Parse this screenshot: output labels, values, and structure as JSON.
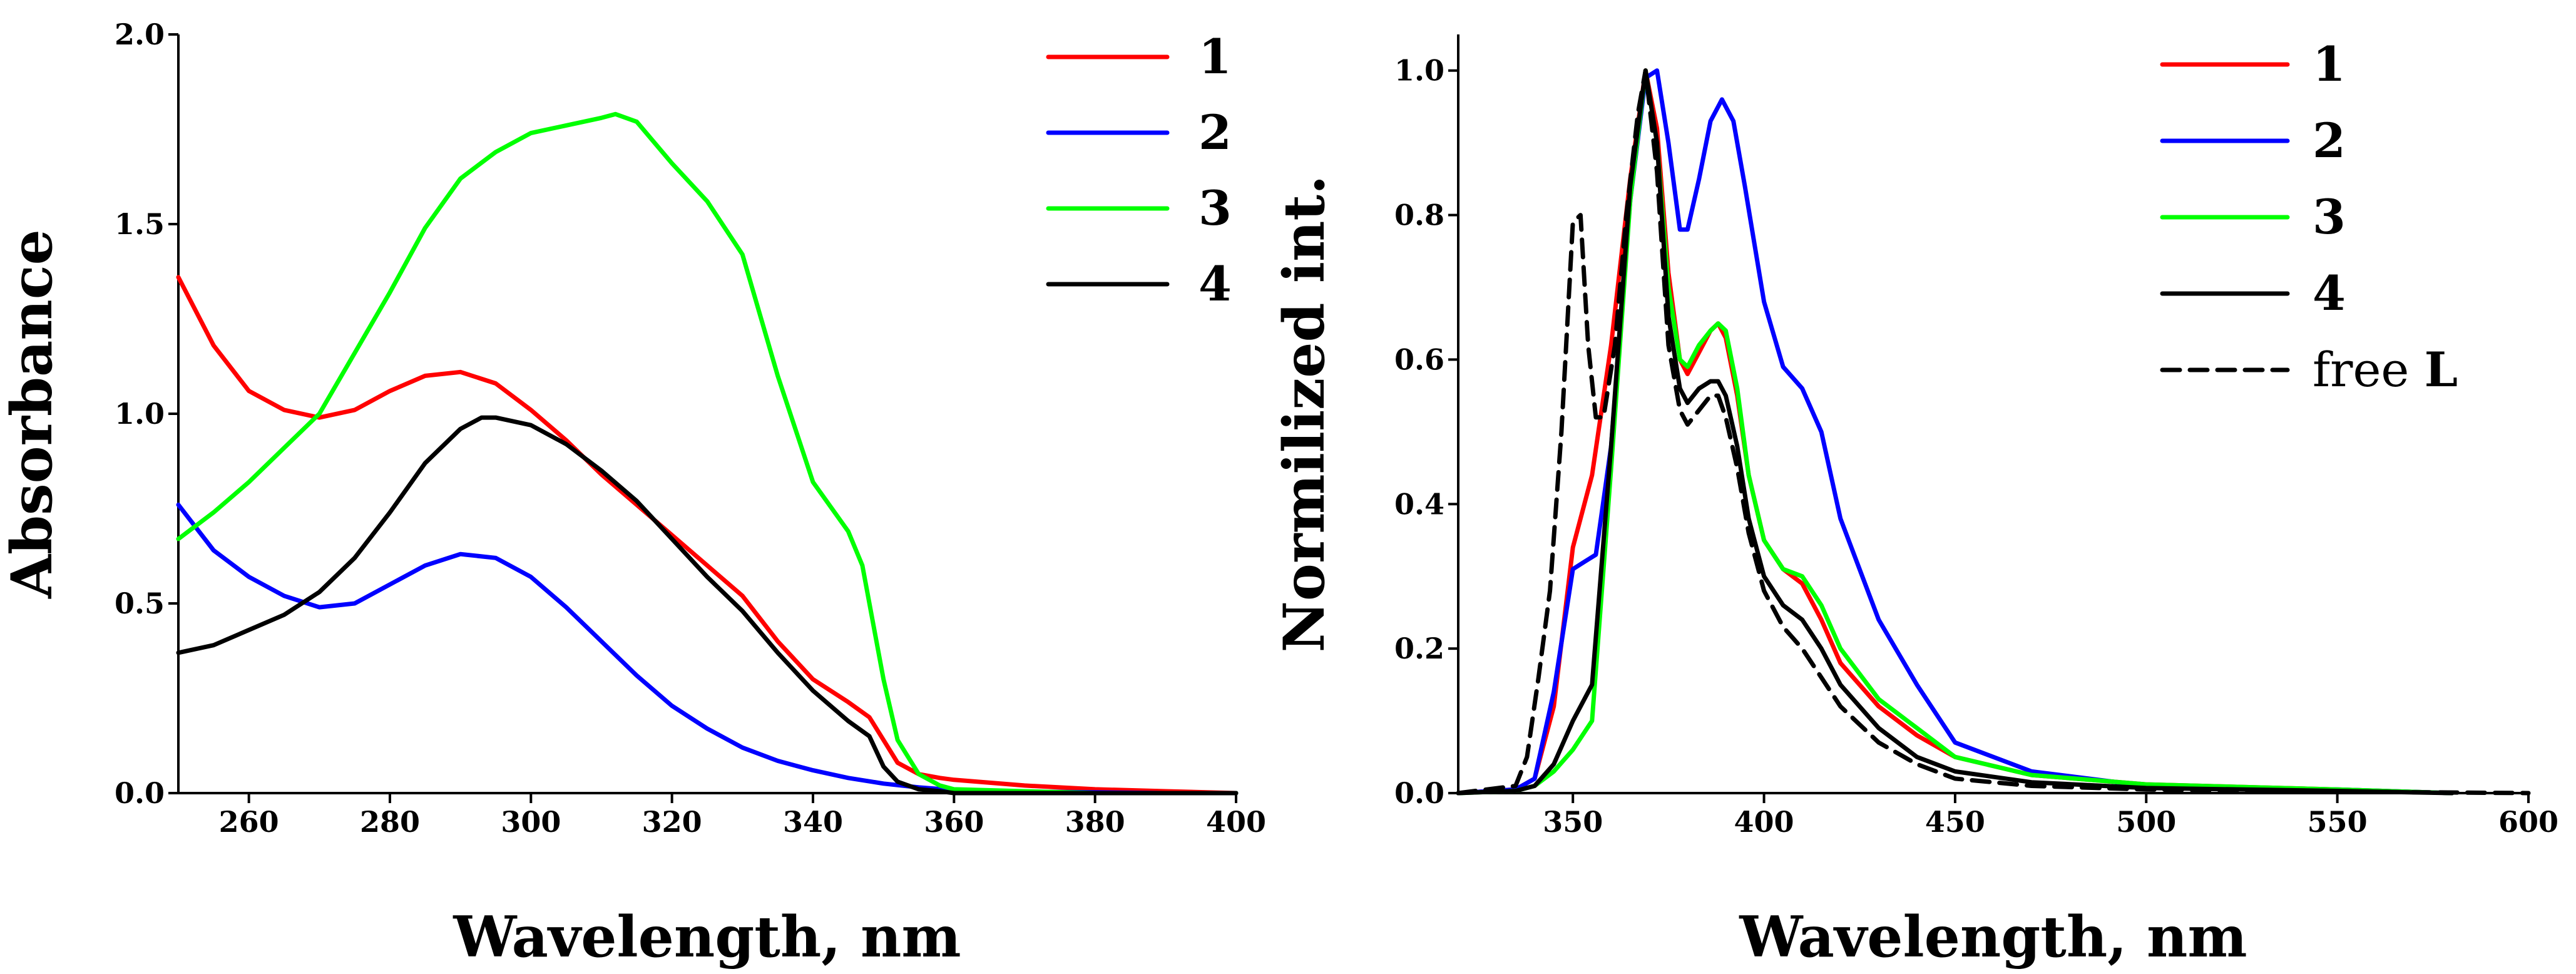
{
  "chart_data": [
    {
      "type": "line",
      "title": "",
      "xlabel": "Wavelength, nm",
      "ylabel": "Absorbance",
      "xlim": [
        250,
        400
      ],
      "ylim": [
        0,
        2.0
      ],
      "xticks": [
        260,
        280,
        300,
        320,
        340,
        360,
        380,
        400
      ],
      "xtick_labels": [
        "260",
        "280",
        "300",
        "320",
        "340",
        "360",
        "380",
        "400"
      ],
      "yticks": [
        0,
        0.5,
        1.0,
        1.5,
        2.0
      ],
      "ytick_labels": [
        "0.0",
        "0.5",
        "1.0",
        "1.5",
        "2.0"
      ],
      "grid": false,
      "legend_position": "top-right",
      "series": [
        {
          "name": "1",
          "color": "#ff0000",
          "dash": "solid",
          "x": [
            250,
            255,
            260,
            265,
            270,
            275,
            280,
            285,
            290,
            295,
            300,
            305,
            310,
            315,
            320,
            325,
            330,
            335,
            340,
            345,
            348,
            350,
            352,
            355,
            358,
            360,
            370,
            380,
            390,
            400
          ],
          "y": [
            1.36,
            1.18,
            1.06,
            1.01,
            0.99,
            1.01,
            1.06,
            1.1,
            1.11,
            1.08,
            1.01,
            0.93,
            0.84,
            0.76,
            0.68,
            0.6,
            0.52,
            0.4,
            0.3,
            0.24,
            0.2,
            0.14,
            0.08,
            0.05,
            0.04,
            0.035,
            0.02,
            0.01,
            0.005,
            0.0
          ]
        },
        {
          "name": "2",
          "color": "#0000ff",
          "dash": "solid",
          "x": [
            250,
            255,
            260,
            265,
            270,
            275,
            280,
            285,
            290,
            295,
            300,
            305,
            310,
            315,
            320,
            325,
            330,
            335,
            340,
            345,
            350,
            355,
            360,
            370,
            380,
            390,
            400
          ],
          "y": [
            0.76,
            0.64,
            0.57,
            0.52,
            0.49,
            0.5,
            0.55,
            0.6,
            0.63,
            0.62,
            0.57,
            0.49,
            0.4,
            0.31,
            0.23,
            0.17,
            0.12,
            0.085,
            0.06,
            0.04,
            0.025,
            0.015,
            0.008,
            0.004,
            0.002,
            0.0,
            0.0
          ]
        },
        {
          "name": "3",
          "color": "#00ff00",
          "dash": "solid",
          "x": [
            250,
            255,
            260,
            265,
            270,
            275,
            280,
            285,
            290,
            295,
            300,
            305,
            310,
            312,
            315,
            320,
            325,
            330,
            335,
            340,
            345,
            347,
            350,
            352,
            355,
            358,
            360,
            370,
            380,
            390,
            400
          ],
          "y": [
            0.67,
            0.74,
            0.82,
            0.91,
            1.0,
            1.16,
            1.32,
            1.49,
            1.62,
            1.69,
            1.74,
            1.76,
            1.78,
            1.79,
            1.77,
            1.66,
            1.56,
            1.42,
            1.1,
            0.82,
            0.69,
            0.6,
            0.3,
            0.14,
            0.05,
            0.02,
            0.01,
            0.005,
            0.0,
            0.0,
            0.0
          ]
        },
        {
          "name": "4",
          "color": "#000000",
          "dash": "solid",
          "x": [
            250,
            255,
            260,
            265,
            270,
            275,
            280,
            285,
            290,
            293,
            295,
            300,
            305,
            310,
            315,
            320,
            325,
            330,
            335,
            340,
            345,
            348,
            350,
            352,
            355,
            358,
            360,
            370,
            380,
            390,
            400
          ],
          "y": [
            0.37,
            0.39,
            0.43,
            0.47,
            0.53,
            0.62,
            0.74,
            0.87,
            0.96,
            0.99,
            0.99,
            0.97,
            0.92,
            0.85,
            0.77,
            0.67,
            0.57,
            0.48,
            0.37,
            0.27,
            0.19,
            0.15,
            0.07,
            0.03,
            0.01,
            0.005,
            0.0,
            0.0,
            0.0,
            0.0,
            0.0
          ]
        }
      ]
    },
    {
      "type": "line",
      "title": "",
      "xlabel": "Wavelength, nm",
      "ylabel": "Normilized int.",
      "xlim": [
        320,
        600
      ],
      "ylim": [
        0,
        1.05
      ],
      "xticks": [
        350,
        400,
        450,
        500,
        550,
        600
      ],
      "xtick_labels": [
        "350",
        "400",
        "450",
        "500",
        "550",
        "600"
      ],
      "yticks": [
        0,
        0.2,
        0.4,
        0.6,
        0.8,
        1.0
      ],
      "ytick_labels": [
        "0.0",
        "0.2",
        "0.4",
        "0.6",
        "0.8",
        "1.0"
      ],
      "grid": false,
      "legend_position": "top-right",
      "series": [
        {
          "name": "1",
          "color": "#ff0000",
          "dash": "solid",
          "x": [
            320,
            335,
            340,
            345,
            350,
            355,
            360,
            365,
            369,
            372,
            375,
            378,
            380,
            383,
            386,
            388,
            390,
            393,
            396,
            400,
            405,
            410,
            415,
            420,
            430,
            440,
            450,
            470,
            500,
            550,
            580
          ],
          "y": [
            0.0,
            0.005,
            0.02,
            0.12,
            0.34,
            0.44,
            0.62,
            0.85,
            1.0,
            0.92,
            0.72,
            0.6,
            0.58,
            0.61,
            0.64,
            0.65,
            0.63,
            0.55,
            0.44,
            0.35,
            0.31,
            0.29,
            0.24,
            0.18,
            0.12,
            0.08,
            0.05,
            0.025,
            0.012,
            0.005,
            0.0
          ]
        },
        {
          "name": "2",
          "color": "#0000ff",
          "dash": "solid",
          "x": [
            320,
            335,
            340,
            345,
            350,
            353,
            356,
            360,
            365,
            369,
            372,
            375,
            378,
            380,
            383,
            386,
            389,
            392,
            395,
            400,
            405,
            410,
            415,
            420,
            430,
            440,
            450,
            470,
            500,
            550,
            580
          ],
          "y": [
            0.0,
            0.005,
            0.02,
            0.14,
            0.31,
            0.32,
            0.33,
            0.48,
            0.82,
            0.99,
            1.0,
            0.9,
            0.78,
            0.78,
            0.85,
            0.93,
            0.96,
            0.93,
            0.84,
            0.68,
            0.59,
            0.56,
            0.5,
            0.38,
            0.24,
            0.15,
            0.07,
            0.03,
            0.01,
            0.005,
            0.0
          ]
        },
        {
          "name": "3",
          "color": "#00ff00",
          "dash": "solid",
          "x": [
            320,
            335,
            340,
            345,
            350,
            355,
            360,
            365,
            369,
            372,
            375,
            378,
            380,
            383,
            386,
            388,
            390,
            393,
            396,
            400,
            405,
            410,
            415,
            420,
            430,
            440,
            450,
            470,
            500,
            550,
            580
          ],
          "y": [
            0.0,
            0.003,
            0.01,
            0.03,
            0.06,
            0.1,
            0.45,
            0.82,
            1.0,
            0.9,
            0.7,
            0.6,
            0.59,
            0.62,
            0.64,
            0.65,
            0.64,
            0.56,
            0.44,
            0.35,
            0.31,
            0.3,
            0.26,
            0.2,
            0.13,
            0.09,
            0.05,
            0.025,
            0.012,
            0.005,
            0.0
          ]
        },
        {
          "name": "4",
          "color": "#000000",
          "dash": "solid",
          "x": [
            320,
            335,
            340,
            345,
            350,
            355,
            360,
            365,
            369,
            372,
            375,
            378,
            380,
            383,
            386,
            388,
            390,
            393,
            396,
            400,
            405,
            410,
            415,
            420,
            430,
            440,
            450,
            470,
            500,
            550,
            580
          ],
          "y": [
            0.0,
            0.003,
            0.01,
            0.04,
            0.1,
            0.15,
            0.48,
            0.84,
            1.0,
            0.9,
            0.66,
            0.56,
            0.54,
            0.56,
            0.57,
            0.57,
            0.55,
            0.48,
            0.38,
            0.3,
            0.26,
            0.24,
            0.2,
            0.15,
            0.09,
            0.05,
            0.03,
            0.015,
            0.007,
            0.003,
            0.0
          ]
        },
        {
          "name": "free L",
          "color": "#000000",
          "dash": "dashed",
          "x": [
            320,
            335,
            338,
            341,
            344,
            347,
            350,
            352,
            354,
            356,
            358,
            361,
            364,
            367,
            369,
            372,
            375,
            378,
            380,
            383,
            386,
            388,
            390,
            393,
            396,
            400,
            405,
            410,
            415,
            420,
            430,
            440,
            450,
            470,
            500,
            550,
            600
          ],
          "y": [
            0.0,
            0.01,
            0.05,
            0.16,
            0.28,
            0.5,
            0.79,
            0.8,
            0.62,
            0.52,
            0.52,
            0.62,
            0.8,
            0.94,
            1.0,
            0.86,
            0.62,
            0.53,
            0.51,
            0.53,
            0.55,
            0.55,
            0.52,
            0.45,
            0.36,
            0.28,
            0.23,
            0.2,
            0.16,
            0.12,
            0.07,
            0.04,
            0.02,
            0.01,
            0.005,
            0.002,
            0.0
          ]
        }
      ]
    }
  ]
}
